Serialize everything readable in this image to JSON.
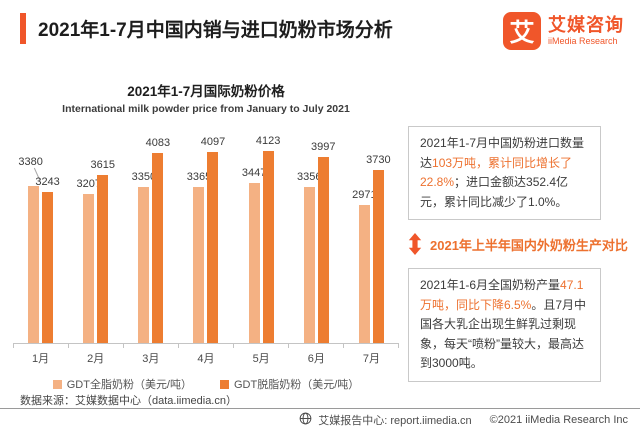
{
  "colors": {
    "accent": "#f0562a",
    "highlight": "#ed712f",
    "bar_light": "#f4b183",
    "bar_dark": "#ed7d31"
  },
  "header": {
    "title": "2021年1-7月中国内销与进口奶粉市场分析",
    "logo": {
      "glyph": "艾",
      "cn": "艾媒咨询",
      "en": "iiMedia Research"
    }
  },
  "chart_data": {
    "type": "bar",
    "title": "2021年1-7月国际奶粉价格",
    "subtitle": "International milk powder price from January to July 2021",
    "categories": [
      "1月",
      "2月",
      "3月",
      "4月",
      "5月",
      "6月",
      "7月"
    ],
    "series": [
      {
        "name": "GDT全脂奶粉（美元/吨）",
        "color": "#f4b183",
        "values": [
          3380,
          3207,
          3350,
          3365,
          3447,
          3356,
          2971
        ]
      },
      {
        "name": "GDT脱脂奶粉（美元/吨）",
        "color": "#ed7d31",
        "values": [
          3243,
          3615,
          4083,
          4097,
          4123,
          3997,
          3730
        ]
      }
    ],
    "xlabel": "",
    "ylabel": "美元/吨",
    "ylim": [
      0,
      4300
    ],
    "grid": false,
    "legend_position": "bottom",
    "data_labels": true
  },
  "insights": {
    "import_box": {
      "segments": [
        {
          "text": "2021年1-7月中国奶粉进口数量达",
          "color": "dark"
        },
        {
          "text": "103万吨，累计同比增长了22.8%",
          "color": "accent"
        },
        {
          "text": "；进口金额达352.4亿元，累计同比减少了1.0%。",
          "color": "dark"
        }
      ]
    },
    "callout": "2021年上半年国内外奶粉生产对比",
    "production_box": {
      "segments": [
        {
          "text": "2021年1-6月全国奶粉产量",
          "color": "dark"
        },
        {
          "text": "47.1万吨，同比下降6.5%",
          "color": "accent"
        },
        {
          "text": "。且7月中国各大乳企出现生鲜乳过剩现象，每天“喷粉”量较大，最高达到3000吨。",
          "color": "dark"
        }
      ]
    }
  },
  "footer": {
    "source": "数据来源：艾媒数据中心（data.iimedia.cn）",
    "report_center": "艾媒报告中心: report.iimedia.cn",
    "copyright": "©2021  iiMedia Research  Inc"
  }
}
